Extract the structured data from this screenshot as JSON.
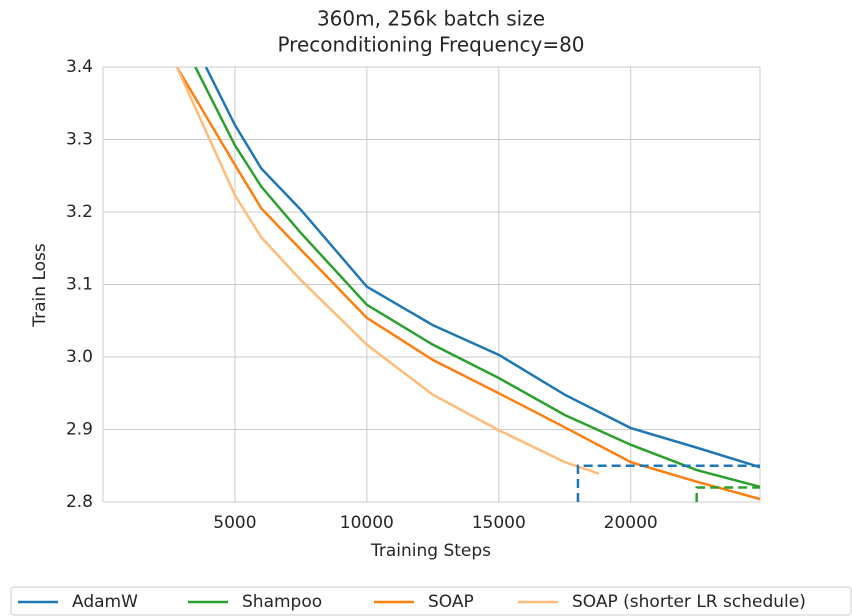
{
  "chart_data": {
    "type": "line",
    "title": "360m, 256k batch size",
    "subtitle": "Preconditioning Frequency=80",
    "xlabel": "Training Steps",
    "ylabel": "Train Loss",
    "xlim": [
      0,
      24900
    ],
    "ylim": [
      2.8,
      3.4
    ],
    "xticks": [
      5000,
      10000,
      15000,
      20000
    ],
    "yticks": [
      2.8,
      2.9,
      {
        "value": 3,
        "label": "3.0"
      },
      3.1,
      3.2,
      3.3,
      3.4
    ],
    "grid": true,
    "legend": "bottom",
    "series": [
      {
        "name": "AdamW",
        "color": "#1f77b4",
        "x": [
          3900,
          5000,
          6000,
          7500,
          10000,
          12500,
          15000,
          17500,
          20000,
          22500,
          24900
        ],
        "values": [
          3.4,
          3.32,
          3.26,
          3.203,
          3.097,
          3.044,
          3.003,
          2.948,
          2.902,
          2.875,
          2.848
        ]
      },
      {
        "name": "Shampoo",
        "color": "#2ca02c",
        "x": [
          3500,
          5000,
          6000,
          7500,
          10000,
          12500,
          15000,
          17500,
          20000,
          22500,
          24900
        ],
        "values": [
          3.4,
          3.292,
          3.235,
          3.171,
          3.072,
          3.017,
          2.971,
          2.92,
          2.879,
          2.844,
          2.821
        ]
      },
      {
        "name": "SOAP",
        "color": "#ff7f0e",
        "x": [
          2800,
          5000,
          6000,
          7500,
          10000,
          12500,
          15000,
          17500,
          20000,
          22500,
          24900
        ],
        "values": [
          3.4,
          3.265,
          3.205,
          3.148,
          3.054,
          2.996,
          2.95,
          2.903,
          2.855,
          2.828,
          2.804
        ]
      },
      {
        "name": "SOAP (shorter LR schedule)",
        "color": "#ffbb78",
        "x": [
          2800,
          5000,
          6000,
          7500,
          10000,
          12500,
          15000,
          17500,
          18800
        ],
        "values": [
          3.4,
          3.223,
          3.165,
          3.106,
          3.017,
          2.948,
          2.899,
          2.855,
          2.839
        ]
      }
    ],
    "dashed_lines": [
      {
        "color": "#1f77b4",
        "x": [
          18000,
          18000,
          24900
        ],
        "values": [
          2.8,
          2.85,
          2.85
        ]
      },
      {
        "color": "#2ca02c",
        "x": [
          22500,
          22500,
          24900
        ],
        "values": [
          2.8,
          2.82,
          2.82
        ]
      }
    ]
  }
}
